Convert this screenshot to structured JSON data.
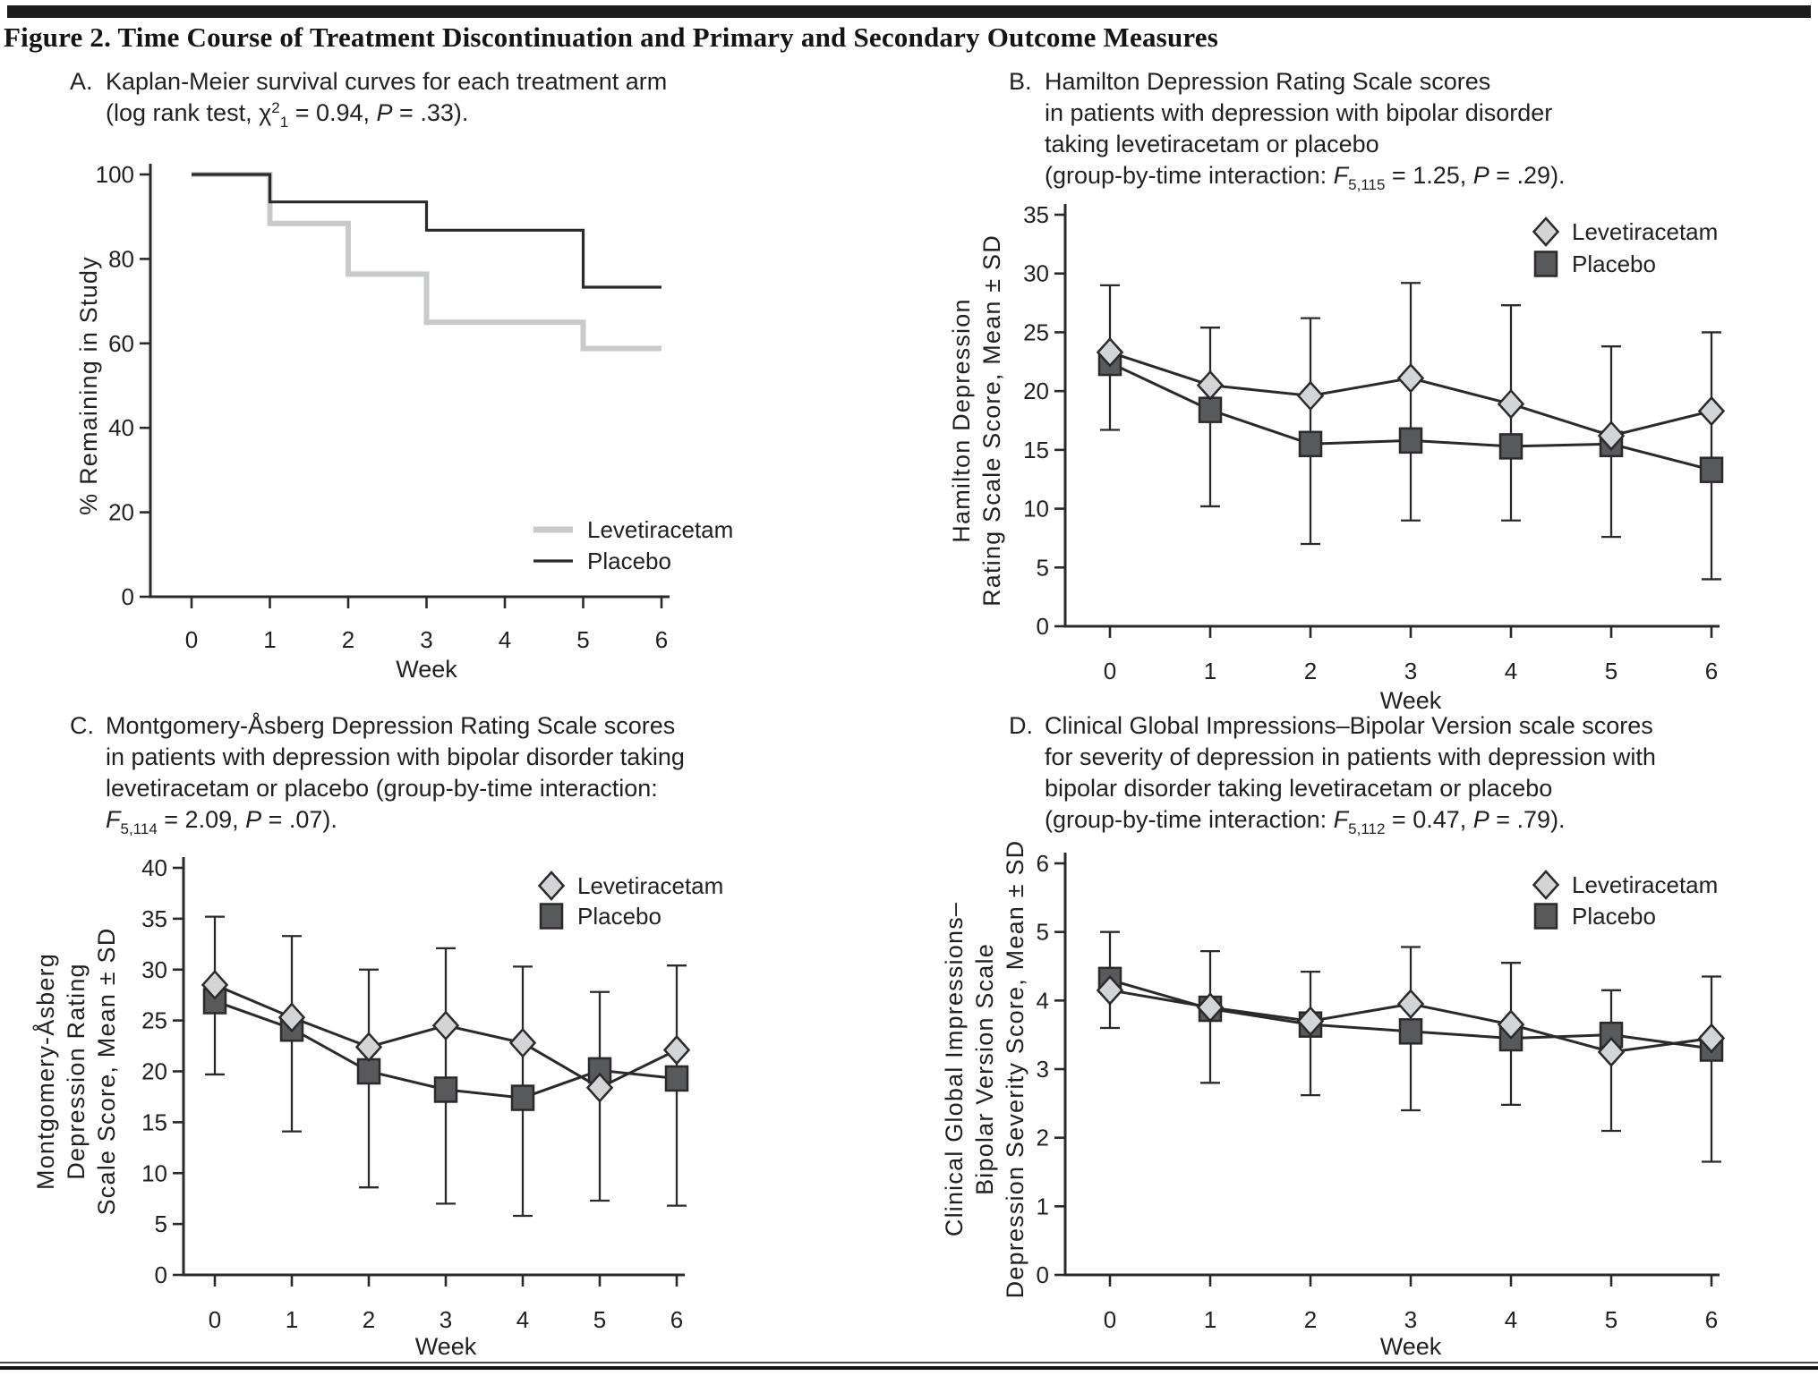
{
  "figure": {
    "title": "Figure 2. Time Course of Treatment Discontinuation and Primary and Secondary Outcome Measures"
  },
  "colors": {
    "ink": "#2b292a",
    "light_line": "#c7c9cb",
    "marker_light_fill": "#d2d4d5",
    "marker_dark_fill": "#58595b",
    "marker_stroke": "#2b292a"
  },
  "chart_data": [
    {
      "panel": "A",
      "type": "line",
      "subtype": "kaplan-meier-step",
      "title_lines": [
        [
          [
            "Kaplan-Meier survival curves for each treatment arm",
            ""
          ]
        ],
        [
          [
            "(log rank test, ",
            ""
          ],
          [
            "χ",
            ""
          ],
          [
            "2",
            "sup"
          ],
          [
            "1",
            "sub"
          ],
          [
            " = 0.94, ",
            ""
          ],
          [
            "P",
            "i"
          ],
          [
            " = .33).",
            ""
          ]
        ]
      ],
      "xlabel": "Week",
      "ylabel_lines": [
        "% Remaining in Study"
      ],
      "x_ticks": [
        0,
        1,
        2,
        3,
        4,
        5,
        6
      ],
      "y_ticks": [
        0,
        20,
        40,
        60,
        80,
        100
      ],
      "xlim": [
        0,
        6
      ],
      "ylim": [
        0,
        100
      ],
      "legend": [
        "Levetiracetam",
        "Placebo"
      ],
      "series": [
        {
          "name": "Levetiracetam",
          "color_key": "light",
          "points": [
            [
              0,
              100
            ],
            [
              1,
              100
            ],
            [
              1,
              88.4
            ],
            [
              2,
              88.4
            ],
            [
              2,
              76.4
            ],
            [
              3,
              76.4
            ],
            [
              3,
              65
            ],
            [
              5,
              65
            ],
            [
              5,
              58.8
            ],
            [
              6,
              58.8
            ]
          ]
        },
        {
          "name": "Placebo",
          "color_key": "dark",
          "points": [
            [
              0,
              100
            ],
            [
              1,
              100
            ],
            [
              1,
              93.5
            ],
            [
              3,
              93.5
            ],
            [
              3,
              86.8
            ],
            [
              5,
              86.8
            ],
            [
              5,
              73.3
            ],
            [
              6,
              73.3
            ]
          ]
        }
      ]
    },
    {
      "panel": "B",
      "type": "line",
      "subtype": "mean-sd-errorbars",
      "title_lines": [
        [
          [
            "Hamilton Depression Rating Scale scores",
            ""
          ]
        ],
        [
          [
            "in patients with depression with bipolar disorder",
            ""
          ]
        ],
        [
          [
            "taking levetiracetam or placebo",
            ""
          ]
        ],
        [
          [
            "(group-by-time interaction: ",
            ""
          ],
          [
            "F",
            "i"
          ],
          [
            "5,115",
            "sub"
          ],
          [
            " = 1.25, ",
            ""
          ],
          [
            "P",
            "i"
          ],
          [
            " = .29).",
            ""
          ]
        ]
      ],
      "xlabel": "Week",
      "ylabel_lines": [
        "Hamilton Depression",
        "Rating Scale Score, Mean ± SD"
      ],
      "x": [
        0,
        1,
        2,
        3,
        4,
        5,
        6
      ],
      "y_ticks": [
        0,
        5,
        10,
        15,
        20,
        25,
        30,
        35
      ],
      "ylim": [
        0,
        35
      ],
      "legend": [
        "Levetiracetam",
        "Placebo"
      ],
      "series": [
        {
          "name": "Levetiracetam",
          "marker": "diamond",
          "values": [
            23.3,
            20.5,
            19.6,
            21.1,
            18.9,
            16.2,
            18.3
          ]
        },
        {
          "name": "Placebo",
          "marker": "square",
          "values": [
            22.4,
            18.4,
            15.5,
            15.8,
            15.3,
            15.5,
            13.3
          ]
        }
      ],
      "whiskers": {
        "top": [
          29.0,
          25.4,
          26.2,
          29.2,
          27.3,
          23.8,
          25.0
        ],
        "bottom": [
          16.7,
          10.2,
          7.0,
          9.0,
          9.0,
          7.6,
          4.0
        ]
      }
    },
    {
      "panel": "C",
      "type": "line",
      "subtype": "mean-sd-errorbars",
      "title_lines": [
        [
          [
            "Montgomery-Åsberg Depression Rating Scale scores",
            ""
          ]
        ],
        [
          [
            "in patients with depression with bipolar disorder taking",
            ""
          ]
        ],
        [
          [
            "levetiracetam or placebo (group-by-time interaction:",
            ""
          ]
        ],
        [
          [
            "F",
            "i"
          ],
          [
            "5,114",
            "sub"
          ],
          [
            " = 2.09, ",
            ""
          ],
          [
            "P",
            "i"
          ],
          [
            " = .07).",
            ""
          ]
        ]
      ],
      "xlabel": "Week",
      "ylabel_lines": [
        "Montgomery-Åsberg",
        "Depression Rating",
        "Scale Score, Mean ± SD"
      ],
      "x": [
        0,
        1,
        2,
        3,
        4,
        5,
        6
      ],
      "y_ticks": [
        0,
        5,
        10,
        15,
        20,
        25,
        30,
        35,
        40
      ],
      "ylim": [
        0,
        40
      ],
      "legend": [
        "Levetiracetam",
        "Placebo"
      ],
      "series": [
        {
          "name": "Levetiracetam",
          "marker": "diamond",
          "values": [
            28.5,
            25.3,
            22.4,
            24.5,
            22.8,
            18.4,
            22.1
          ]
        },
        {
          "name": "Placebo",
          "marker": "square",
          "values": [
            26.9,
            24.2,
            20.0,
            18.2,
            17.4,
            20.1,
            19.3
          ]
        }
      ],
      "whiskers": {
        "top": [
          35.2,
          33.3,
          30.0,
          32.1,
          30.3,
          27.8,
          30.4
        ],
        "bottom": [
          19.7,
          14.1,
          8.6,
          7.0,
          5.8,
          7.3,
          6.8
        ]
      }
    },
    {
      "panel": "D",
      "type": "line",
      "subtype": "mean-sd-errorbars",
      "title_lines": [
        [
          [
            "Clinical Global Impressions–Bipolar Version scale scores",
            ""
          ]
        ],
        [
          [
            "for severity of depression in patients with depression with",
            ""
          ]
        ],
        [
          [
            "bipolar disorder taking levetiracetam or placebo",
            ""
          ]
        ],
        [
          [
            "(group-by-time interaction: ",
            ""
          ],
          [
            "F",
            "i"
          ],
          [
            "5,112",
            "sub"
          ],
          [
            " = 0.47, ",
            ""
          ],
          [
            "P",
            "i"
          ],
          [
            " = .79).",
            ""
          ]
        ]
      ],
      "xlabel": "Week",
      "ylabel_lines": [
        "Clinical Global Impressions–",
        "Bipolar Version Scale",
        "Depression Severity Score, Mean ± SD"
      ],
      "x": [
        0,
        1,
        2,
        3,
        4,
        5,
        6
      ],
      "y_ticks": [
        0,
        1,
        2,
        3,
        4,
        5,
        6
      ],
      "ylim": [
        0,
        6
      ],
      "legend": [
        "Levetiracetam",
        "Placebo"
      ],
      "series": [
        {
          "name": "Levetiracetam",
          "marker": "diamond",
          "values": [
            4.15,
            3.9,
            3.7,
            3.95,
            3.65,
            3.25,
            3.45
          ]
        },
        {
          "name": "Placebo",
          "marker": "square",
          "values": [
            4.3,
            3.88,
            3.65,
            3.55,
            3.45,
            3.5,
            3.3
          ]
        }
      ],
      "whiskers": {
        "top": [
          5.0,
          4.72,
          4.42,
          4.78,
          4.55,
          4.15,
          4.35
        ],
        "bottom": [
          3.6,
          2.8,
          2.62,
          2.4,
          2.48,
          2.1,
          1.65
        ]
      }
    }
  ]
}
